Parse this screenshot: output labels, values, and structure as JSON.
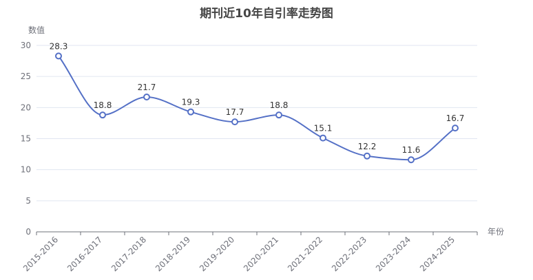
{
  "chart_data": {
    "type": "line",
    "title": "期刊近10年自引率走势图",
    "xlabel": "年份",
    "ylabel": "数值",
    "categories": [
      "2015-2016",
      "2016-2017",
      "2017-2018",
      "2018-2019",
      "2019-2020",
      "2020-2021",
      "2021-2022",
      "2022-2023",
      "2023-2024",
      "2024-2025"
    ],
    "series": [
      {
        "values": [
          28.3,
          18.8,
          21.7,
          19.3,
          17.7,
          18.8,
          15.1,
          12.2,
          11.6,
          16.7
        ]
      }
    ],
    "ylim": [
      0,
      30
    ],
    "yticks": [
      0,
      5,
      10,
      15,
      20,
      25,
      30
    ],
    "grid": true,
    "smooth": true,
    "colors": {
      "line": "#5470c6",
      "grid": "#e0e6f1",
      "axis": "#6e7079"
    }
  }
}
